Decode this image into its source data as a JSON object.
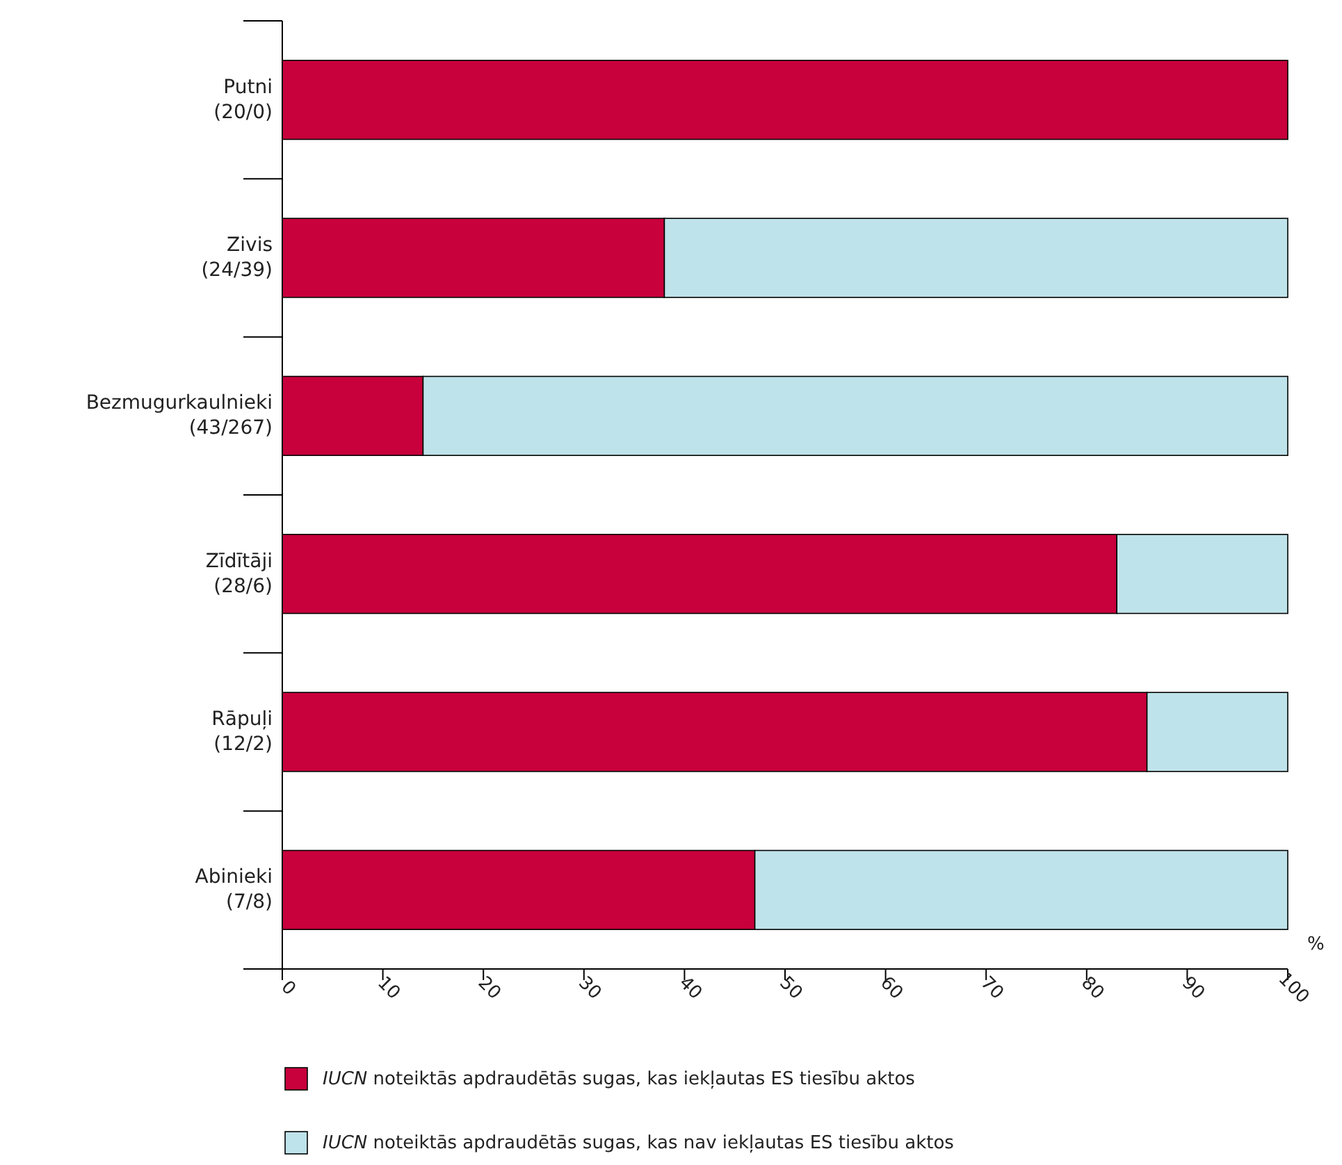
{
  "chart_data": {
    "type": "bar",
    "orientation": "horizontal",
    "stacked": true,
    "categories": [
      "Putni\n(20/0)",
      "Zivis\n(24/39)",
      "Bezmugurkaulnieki\n(43/267)",
      "Zīdītāji\n(28/6)",
      "Rāpuļi\n(12/2)",
      "Abinieki\n(7/8)"
    ],
    "series": [
      {
        "name": "IUCN noteiktās apdraudētās sugas, kas iekļautas ES tiesību aktos",
        "color": "#c8003c",
        "values": [
          100,
          38,
          14,
          83,
          86,
          47
        ]
      },
      {
        "name": "IUCN noteiktās apdraudētās sugas, kas nav iekļautas ES tiesību aktos",
        "color": "#bfe3ea",
        "values": [
          0,
          62,
          86,
          17,
          14,
          53
        ]
      }
    ],
    "xlabel": "%",
    "xlim": [
      0,
      100
    ],
    "xticks": [
      0,
      10,
      20,
      30,
      40,
      50,
      60,
      70,
      80,
      90,
      100
    ],
    "legend": "bottom",
    "grid": false
  }
}
